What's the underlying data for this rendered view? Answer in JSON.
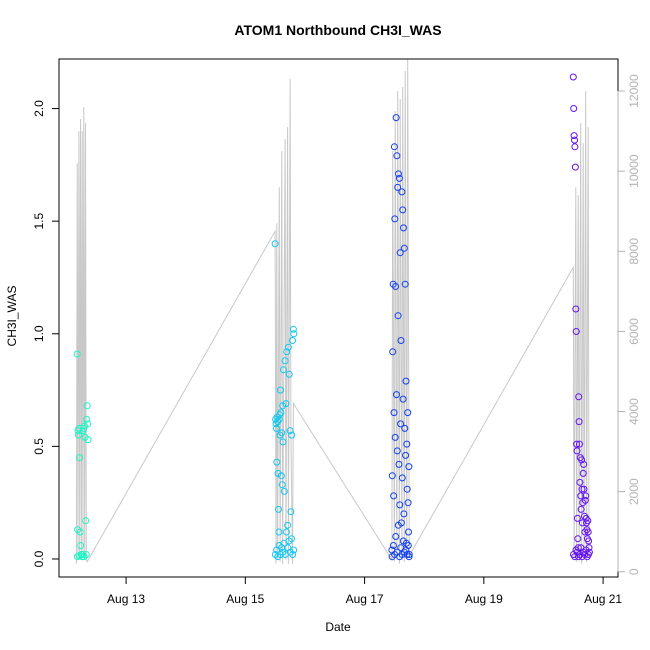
{
  "chart_data": {
    "type": "scatter",
    "title": "ATOM1 Northbound CH3I_WAS",
    "xlabel": "Date",
    "ylabel": "CH3I_WAS",
    "xlim": [
      "2016-08-11T21:00",
      "2016-08-21T06:00"
    ],
    "ylim": [
      -0.08,
      2.22
    ],
    "y2lim": [
      -130,
      12800
    ],
    "x_ticks": [
      {
        "value": "2016-08-13",
        "label": "Aug 13"
      },
      {
        "value": "2016-08-15",
        "label": "Aug 15"
      },
      {
        "value": "2016-08-17",
        "label": "Aug 17"
      },
      {
        "value": "2016-08-19",
        "label": "Aug 19"
      },
      {
        "value": "2016-08-21",
        "label": "Aug 21"
      }
    ],
    "y_ticks": [
      {
        "value": 0.0,
        "label": "0.0"
      },
      {
        "value": 0.5,
        "label": "0.5"
      },
      {
        "value": 1.0,
        "label": "1.0"
      },
      {
        "value": 1.5,
        "label": "1.5"
      },
      {
        "value": 2.0,
        "label": "2.0"
      }
    ],
    "y2_ticks": [
      {
        "value": 0,
        "label": "0"
      },
      {
        "value": 2000,
        "label": "2000"
      },
      {
        "value": 4000,
        "label": "4000"
      },
      {
        "value": 6000,
        "label": "6000"
      },
      {
        "value": 8000,
        "label": "8000"
      },
      {
        "value": 10000,
        "label": "10000"
      },
      {
        "value": 12000,
        "label": "12000"
      }
    ],
    "grid": false,
    "legend": "none",
    "altitude_series": {
      "color": "#c8c8c8",
      "axis": "right",
      "x": [
        "2016-08-12T04:00",
        "2016-08-12T04:20",
        "2016-08-12T04:40",
        "2016-08-12T05:00",
        "2016-08-12T05:20",
        "2016-08-12T05:40",
        "2016-08-12T06:00",
        "2016-08-12T06:20",
        "2016-08-12T06:40",
        "2016-08-12T07:00",
        "2016-08-12T07:20",
        "2016-08-12T07:40",
        "2016-08-12T08:00",
        "2016-08-12T08:20",
        "2016-08-15T12:00",
        "2016-08-15T12:20",
        "2016-08-15T12:40",
        "2016-08-15T13:00",
        "2016-08-15T13:40",
        "2016-08-15T14:00",
        "2016-08-15T14:40",
        "2016-08-15T15:00",
        "2016-08-15T16:00",
        "2016-08-15T16:20",
        "2016-08-15T17:00",
        "2016-08-15T17:20",
        "2016-08-15T18:00",
        "2016-08-15T18:20",
        "2016-08-15T19:00",
        "2016-08-15T19:20",
        "2016-08-17T11:00",
        "2016-08-17T11:20",
        "2016-08-17T12:00",
        "2016-08-17T12:20",
        "2016-08-17T13:00",
        "2016-08-17T13:20",
        "2016-08-17T14:00",
        "2016-08-17T14:20",
        "2016-08-17T15:00",
        "2016-08-17T15:20",
        "2016-08-17T16:00",
        "2016-08-17T16:20",
        "2016-08-17T17:00",
        "2016-08-17T17:20",
        "2016-08-17T18:00",
        "2016-08-20T12:00",
        "2016-08-20T12:20",
        "2016-08-20T13:00",
        "2016-08-20T13:20",
        "2016-08-20T14:00",
        "2016-08-20T14:20",
        "2016-08-20T15:00",
        "2016-08-20T15:20",
        "2016-08-20T16:00",
        "2016-08-20T16:20",
        "2016-08-20T17:00",
        "2016-08-20T17:20",
        "2016-08-20T18:00",
        "2016-08-20T18:20"
      ],
      "values": [
        200,
        10200,
        300,
        11000,
        400,
        11300,
        300,
        11000,
        500,
        11600,
        300,
        11200,
        300,
        250,
        8500,
        200,
        8700,
        300,
        9600,
        250,
        10500,
        200,
        10800,
        300,
        11100,
        200,
        12300,
        3500,
        200,
        4200,
        300,
        10500,
        250,
        11500,
        300,
        12000,
        200,
        11800,
        300,
        12100,
        250,
        12500,
        300,
        12800,
        400,
        7600,
        300,
        9600,
        250,
        9400,
        300,
        11200,
        200,
        10700,
        300,
        12000,
        250,
        11100,
        300
      ]
    },
    "series": [
      {
        "color": "#1EF5C4",
        "x": [
          "2016-08-12T04:20",
          "2016-08-12T04:30",
          "2016-08-12T04:40",
          "2016-08-12T04:50",
          "2016-08-12T05:00",
          "2016-08-12T05:15",
          "2016-08-12T05:30",
          "2016-08-12T05:45",
          "2016-08-12T06:00",
          "2016-08-12T06:15",
          "2016-08-12T06:30",
          "2016-08-12T06:45",
          "2016-08-12T07:00",
          "2016-08-12T07:15",
          "2016-08-12T07:30",
          "2016-08-12T07:45",
          "2016-08-12T08:00",
          "2016-08-12T08:10",
          "2016-08-12T08:20",
          "2016-08-12T08:30",
          "2016-08-12T08:40",
          "2016-08-12T04:25",
          "2016-08-12T05:05",
          "2016-08-12T06:05",
          "2016-08-12T07:05"
        ],
        "values": [
          0.91,
          0.13,
          0.57,
          0.55,
          0.58,
          0.45,
          0.12,
          0.06,
          0.02,
          0.01,
          0.02,
          0.57,
          0.58,
          0.59,
          0.54,
          0.17,
          0.02,
          0.62,
          0.68,
          0.6,
          0.53,
          0.01,
          0.015,
          0.02,
          0.01
        ]
      },
      {
        "color": "#12C8F0",
        "x": [
          "2016-08-15T12:00",
          "2016-08-15T12:10",
          "2016-08-15T12:20",
          "2016-08-15T12:30",
          "2016-08-15T12:40",
          "2016-08-15T12:50",
          "2016-08-15T13:00",
          "2016-08-15T13:10",
          "2016-08-15T13:20",
          "2016-08-15T13:30",
          "2016-08-15T13:40",
          "2016-08-15T13:50",
          "2016-08-15T14:00",
          "2016-08-15T14:10",
          "2016-08-15T14:20",
          "2016-08-15T14:30",
          "2016-08-15T14:40",
          "2016-08-15T14:50",
          "2016-08-15T15:00",
          "2016-08-15T15:10",
          "2016-08-15T15:20",
          "2016-08-15T15:40",
          "2016-08-15T16:00",
          "2016-08-15T16:20",
          "2016-08-15T16:40",
          "2016-08-15T17:00",
          "2016-08-15T17:20",
          "2016-08-15T17:40",
          "2016-08-15T18:00",
          "2016-08-15T18:20",
          "2016-08-15T18:40",
          "2016-08-15T19:00",
          "2016-08-15T19:20",
          "2016-08-15T19:30",
          "2016-08-15T12:05",
          "2016-08-15T12:35",
          "2016-08-15T13:05",
          "2016-08-15T13:35",
          "2016-08-15T14:05",
          "2016-08-15T14:35",
          "2016-08-15T15:05",
          "2016-08-15T15:35",
          "2016-08-15T16:05",
          "2016-08-15T16:35",
          "2016-08-15T17:05",
          "2016-08-15T17:35",
          "2016-08-15T18:05",
          "2016-08-15T18:35",
          "2016-08-15T19:05",
          "2016-08-15T19:25"
        ],
        "values": [
          1.4,
          0.62,
          0.6,
          0.58,
          0.43,
          0.63,
          0.61,
          0.38,
          0.22,
          0.12,
          0.62,
          0.64,
          0.55,
          0.75,
          0.65,
          0.37,
          0.56,
          0.33,
          0.68,
          0.52,
          0.84,
          0.3,
          0.88,
          0.69,
          0.92,
          0.15,
          0.94,
          0.82,
          0.57,
          0.21,
          0.55,
          0.97,
          1.02,
          1.0,
          0.02,
          0.04,
          0.01,
          0.06,
          0.02,
          0.05,
          0.03,
          0.07,
          0.02,
          0.12,
          0.05,
          0.08,
          0.03,
          0.09,
          0.02,
          0.04
        ]
      },
      {
        "color": "#1441EB",
        "x": [
          "2016-08-17T11:00",
          "2016-08-17T11:10",
          "2016-08-17T11:20",
          "2016-08-17T11:30",
          "2016-08-17T11:40",
          "2016-08-17T11:50",
          "2016-08-17T12:00",
          "2016-08-17T12:10",
          "2016-08-17T12:20",
          "2016-08-17T12:30",
          "2016-08-17T12:40",
          "2016-08-17T12:50",
          "2016-08-17T13:00",
          "2016-08-17T13:10",
          "2016-08-17T13:20",
          "2016-08-17T13:30",
          "2016-08-17T13:40",
          "2016-08-17T13:50",
          "2016-08-17T14:00",
          "2016-08-17T14:10",
          "2016-08-17T14:20",
          "2016-08-17T14:30",
          "2016-08-17T14:40",
          "2016-08-17T14:50",
          "2016-08-17T15:00",
          "2016-08-17T15:10",
          "2016-08-17T15:20",
          "2016-08-17T15:30",
          "2016-08-17T15:40",
          "2016-08-17T15:50",
          "2016-08-17T16:00",
          "2016-08-17T16:10",
          "2016-08-17T16:20",
          "2016-08-17T16:30",
          "2016-08-17T16:40",
          "2016-08-17T16:50",
          "2016-08-17T17:00",
          "2016-08-17T17:10",
          "2016-08-17T17:20",
          "2016-08-17T17:30",
          "2016-08-17T17:40",
          "2016-08-17T17:50",
          "2016-08-17T18:00",
          "2016-08-17T11:05",
          "2016-08-17T11:35",
          "2016-08-17T12:05",
          "2016-08-17T12:35",
          "2016-08-17T13:05",
          "2016-08-17T13:35",
          "2016-08-17T14:05",
          "2016-08-17T14:35",
          "2016-08-17T15:05",
          "2016-08-17T15:35",
          "2016-08-17T16:05",
          "2016-08-17T16:35",
          "2016-08-17T17:05",
          "2016-08-17T17:35",
          "2016-08-17T17:55"
        ],
        "values": [
          0.04,
          0.37,
          0.92,
          1.22,
          0.28,
          0.65,
          1.83,
          1.51,
          0.54,
          1.21,
          1.96,
          0.73,
          1.79,
          0.48,
          1.65,
          1.08,
          1.71,
          0.42,
          1.69,
          0.24,
          1.36,
          0.6,
          0.97,
          0.16,
          1.63,
          0.36,
          1.55,
          0.71,
          1.47,
          0.2,
          1.38,
          0.58,
          1.22,
          0.46,
          0.79,
          0.07,
          0.51,
          0.31,
          0.65,
          0.25,
          0.12,
          0.41,
          0.02,
          0.01,
          0.06,
          0.02,
          0.1,
          0.03,
          0.15,
          0.01,
          0.05,
          0.02,
          0.08,
          0.03,
          0.04,
          0.02,
          0.06,
          0.01
        ]
      },
      {
        "color": "#6414F0",
        "x": [
          "2016-08-20T12:00",
          "2016-08-20T12:10",
          "2016-08-20T12:20",
          "2016-08-20T12:30",
          "2016-08-20T12:40",
          "2016-08-20T12:50",
          "2016-08-20T13:00",
          "2016-08-20T13:10",
          "2016-08-20T13:20",
          "2016-08-20T13:30",
          "2016-08-20T13:40",
          "2016-08-20T13:50",
          "2016-08-20T14:00",
          "2016-08-20T14:10",
          "2016-08-20T14:20",
          "2016-08-20T14:30",
          "2016-08-20T14:40",
          "2016-08-20T14:50",
          "2016-08-20T15:00",
          "2016-08-20T15:10",
          "2016-08-20T15:20",
          "2016-08-20T15:30",
          "2016-08-20T15:40",
          "2016-08-20T15:50",
          "2016-08-20T16:00",
          "2016-08-20T16:10",
          "2016-08-20T16:20",
          "2016-08-20T16:30",
          "2016-08-20T16:40",
          "2016-08-20T16:50",
          "2016-08-20T17:00",
          "2016-08-20T17:10",
          "2016-08-20T17:20",
          "2016-08-20T17:30",
          "2016-08-20T17:40",
          "2016-08-20T17:50",
          "2016-08-20T18:00",
          "2016-08-20T18:10",
          "2016-08-20T18:20",
          "2016-08-20T18:30",
          "2016-08-20T12:05",
          "2016-08-20T12:35",
          "2016-08-20T13:05",
          "2016-08-20T13:35",
          "2016-08-20T14:05",
          "2016-08-20T14:35",
          "2016-08-20T15:05",
          "2016-08-20T15:35",
          "2016-08-20T16:05",
          "2016-08-20T16:35",
          "2016-08-20T17:05",
          "2016-08-20T17:35",
          "2016-08-20T18:05"
        ],
        "values": [
          2.14,
          2.0,
          1.88,
          1.86,
          1.83,
          1.74,
          1.11,
          1.01,
          0.51,
          0.48,
          0.18,
          0.09,
          0.05,
          0.72,
          0.61,
          0.51,
          0.34,
          0.45,
          0.28,
          0.22,
          0.44,
          0.31,
          0.16,
          0.25,
          0.38,
          0.42,
          0.31,
          0.19,
          0.12,
          0.26,
          0.28,
          0.18,
          0.16,
          0.13,
          0.09,
          0.17,
          0.12,
          0.08,
          0.05,
          0.03,
          0.02,
          0.01,
          0.04,
          0.03,
          0.01,
          0.02,
          0.05,
          0.01,
          0.03,
          0.02,
          0.04,
          0.01,
          0.02
        ]
      }
    ]
  }
}
